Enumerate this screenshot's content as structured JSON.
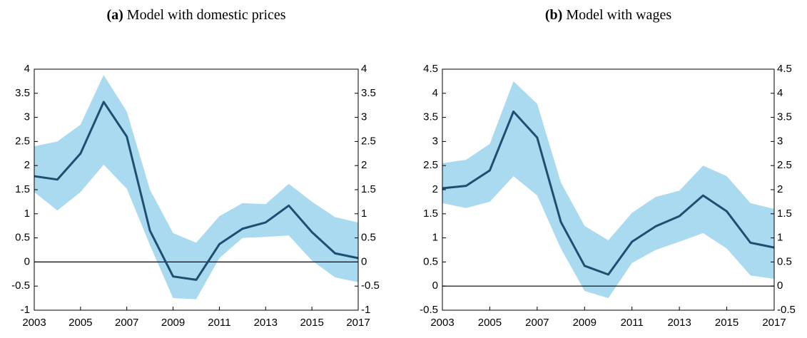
{
  "chart_data": [
    {
      "type": "line",
      "label": "(a)",
      "title": "Model with domestic prices",
      "x": [
        2003,
        2004,
        2005,
        2006,
        2007,
        2008,
        2009,
        2010,
        2011,
        2012,
        2013,
        2014,
        2015,
        2016,
        2017
      ],
      "series": [
        {
          "color": "#1d4f73",
          "values": [
            1.78,
            1.71,
            2.25,
            3.32,
            2.6,
            0.65,
            -0.3,
            -0.37,
            0.37,
            0.69,
            0.82,
            1.17,
            0.62,
            0.18,
            0.08
          ]
        }
      ],
      "band": {
        "color": "#a9daf0",
        "upper": [
          2.4,
          2.5,
          2.85,
          3.88,
          3.12,
          1.5,
          0.6,
          0.4,
          0.95,
          1.22,
          1.2,
          1.62,
          1.25,
          0.93,
          0.82
        ],
        "lower": [
          1.45,
          1.07,
          1.45,
          2.02,
          1.52,
          0.35,
          -0.75,
          -0.77,
          0.08,
          0.5,
          0.52,
          0.55,
          0.03,
          -0.32,
          -0.42
        ]
      },
      "xlim": [
        2003,
        2017
      ],
      "xticks": [
        2003,
        2005,
        2007,
        2009,
        2011,
        2013,
        2015,
        2017
      ],
      "ylim": [
        -1,
        4
      ],
      "yticks": [
        -1,
        -0.5,
        0,
        0.5,
        1,
        1.5,
        2,
        2.5,
        3,
        3.5,
        4
      ]
    },
    {
      "type": "line",
      "label": "(b)",
      "title": "Model with wages",
      "x": [
        2003,
        2004,
        2005,
        2006,
        2007,
        2008,
        2009,
        2010,
        2011,
        2012,
        2013,
        2014,
        2015,
        2016,
        2017
      ],
      "series": [
        {
          "color": "#1d4f73",
          "values": [
            2.03,
            2.08,
            2.4,
            3.62,
            3.08,
            1.33,
            0.42,
            0.24,
            0.92,
            1.24,
            1.45,
            1.88,
            1.55,
            0.9,
            0.8
          ]
        }
      ],
      "band": {
        "color": "#a9daf0",
        "upper": [
          2.55,
          2.62,
          2.95,
          4.25,
          3.78,
          2.15,
          1.25,
          0.95,
          1.52,
          1.85,
          1.98,
          2.5,
          2.28,
          1.72,
          1.6
        ],
        "lower": [
          1.72,
          1.62,
          1.75,
          2.28,
          1.88,
          0.78,
          -0.1,
          -0.25,
          0.48,
          0.75,
          0.92,
          1.1,
          0.78,
          0.22,
          0.15
        ]
      },
      "xlim": [
        2003,
        2017
      ],
      "xticks": [
        2003,
        2005,
        2007,
        2009,
        2011,
        2013,
        2015,
        2017
      ],
      "ylim": [
        -0.5,
        4.5
      ],
      "yticks": [
        -0.5,
        0,
        0.5,
        1,
        1.5,
        2,
        2.5,
        3,
        3.5,
        4,
        4.5
      ]
    }
  ]
}
